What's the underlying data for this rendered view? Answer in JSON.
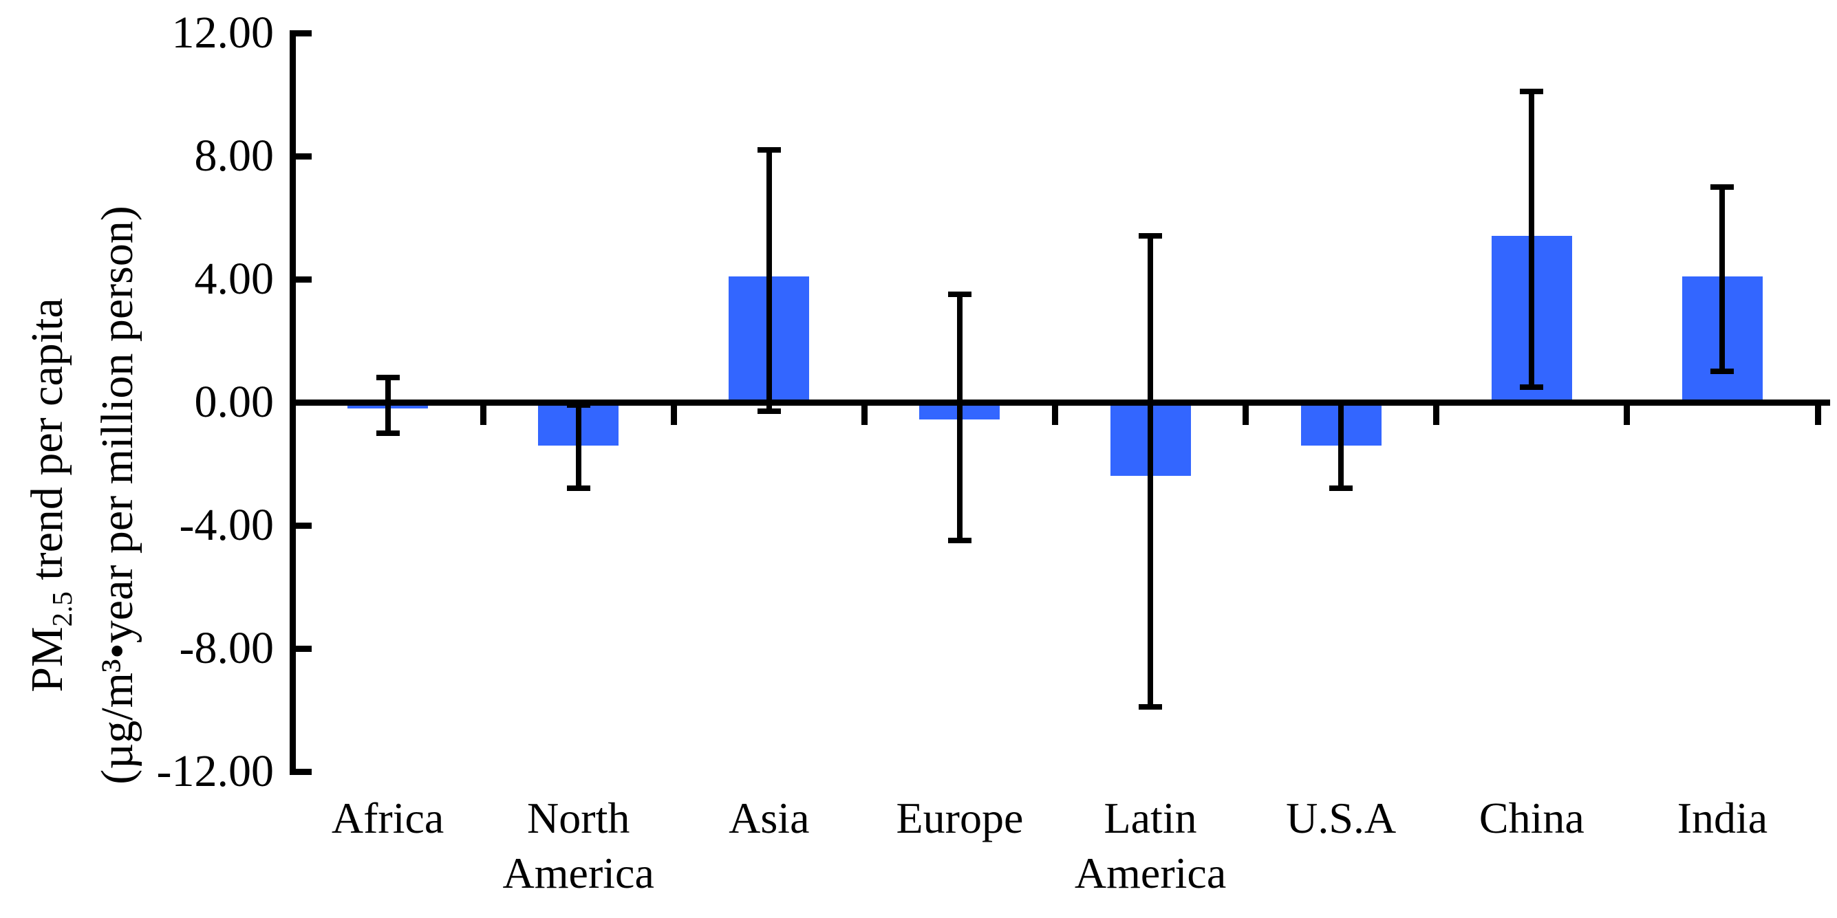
{
  "chart_data": {
    "type": "bar",
    "title": "",
    "categories": [
      "Africa",
      "North America",
      "Asia",
      "Europe",
      "Latin America",
      "U.S.A",
      "China",
      "India"
    ],
    "category_lines": [
      [
        "Africa"
      ],
      [
        "North",
        "America"
      ],
      [
        "Asia"
      ],
      [
        "Europe"
      ],
      [
        "Latin",
        "America"
      ],
      [
        "U.S.A"
      ],
      [
        "China"
      ],
      [
        "India"
      ]
    ],
    "values": [
      -0.2,
      -1.4,
      4.1,
      -0.55,
      -2.4,
      -1.4,
      5.4,
      4.1
    ],
    "error_upper": [
      0.8,
      -0.1,
      8.2,
      3.5,
      5.4,
      0.0,
      10.1,
      7.0
    ],
    "error_lower": [
      -1.0,
      -2.8,
      -0.3,
      -4.5,
      -9.9,
      -2.8,
      0.5,
      1.0
    ],
    "ylabel_line1_prefix": "PM",
    "ylabel_line1_sub": "2.5",
    "ylabel_line1_rest": " trend per capita",
    "ylabel_line2": "(µg/m³•year per million person)",
    "xlabel": "",
    "ylim": [
      -12,
      12
    ],
    "ytick_values": [
      12,
      8,
      4,
      0,
      -4,
      -8,
      -12
    ],
    "ytick_labels": [
      "12.00",
      "8.00",
      "4.00",
      "0.00",
      "-4.00",
      "-8.00",
      "-12.00"
    ],
    "grid": "off",
    "legend": "none",
    "bar_color": "#3366FF",
    "axis_color": "#000000"
  }
}
